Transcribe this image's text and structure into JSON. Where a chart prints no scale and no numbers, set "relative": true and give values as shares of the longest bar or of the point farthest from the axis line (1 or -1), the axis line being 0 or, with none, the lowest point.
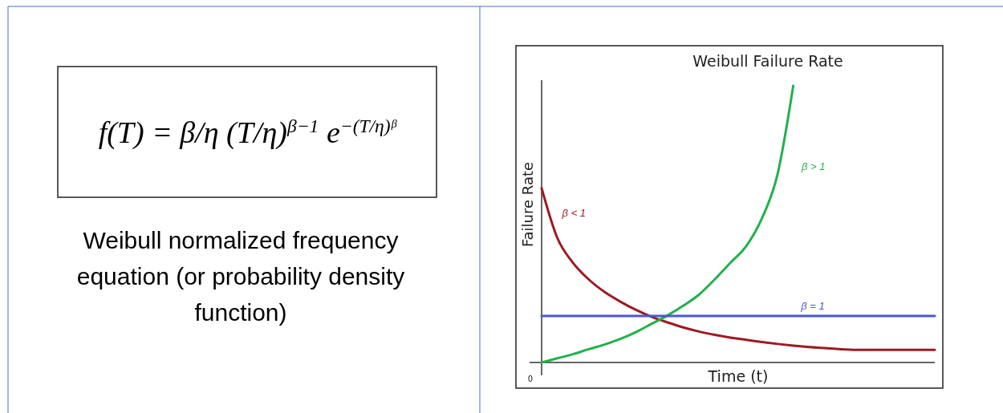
{
  "chart_data": [
    {
      "type": "other",
      "annotations": [
        "f(T) = β/η (T/η)$^{β−1}$ e$^{−(T/η)ᵝ}$",
        "Weibull normalized frequency equation (or probability density function)"
      ]
    },
    {
      "type": "line",
      "title": "Weibull Failure Rate",
      "xlabel": "Time (t)",
      "ylabel": "Failure Rate",
      "relative": true,
      "annotations": [
        "0"
      ],
      "categories": [
        null,
        null,
        null,
        null,
        null,
        null,
        null,
        null,
        null,
        null,
        null,
        null,
        null,
        null,
        null,
        null,
        null,
        null,
        null,
        null,
        null,
        null,
        null,
        null,
        null,
        null
      ],
      "series": [
        {
          "name": "β < 1",
          "color": "#9b1b22",
          "values": [
            0.63,
            0.45,
            0.36,
            0.3,
            0.255,
            0.22,
            0.19,
            0.165,
            0.145,
            0.127,
            0.112,
            0.1,
            0.09,
            0.082,
            0.074,
            0.067,
            0.061,
            0.056,
            0.052,
            0.048,
            0.046,
            0.046,
            0.046,
            0.046,
            0.046,
            0.046
          ]
        },
        {
          "name": "β > 1",
          "color": "#22b14c",
          "values": [
            0,
            0.015,
            0.03,
            0.048,
            0.065,
            0.085,
            0.11,
            0.14,
            0.17,
            0.205,
            0.245,
            0.3,
            0.36,
            0.42,
            0.52,
            0.68,
            1,
            null,
            null,
            null,
            null,
            null,
            null,
            null,
            null,
            null
          ]
        },
        {
          "name": "β = 1",
          "color": "#4a57d6",
          "values": [
            0.168,
            0.168,
            0.168,
            0.168,
            0.168,
            0.168,
            0.168,
            0.168,
            0.168,
            0.168,
            0.168,
            0.168,
            0.168,
            0.168,
            0.168,
            0.168,
            0.168,
            0.168,
            0.168,
            0.168,
            0.168,
            0.168,
            0.168,
            0.168,
            0.168,
            0.168
          ]
        }
      ]
    }
  ]
}
